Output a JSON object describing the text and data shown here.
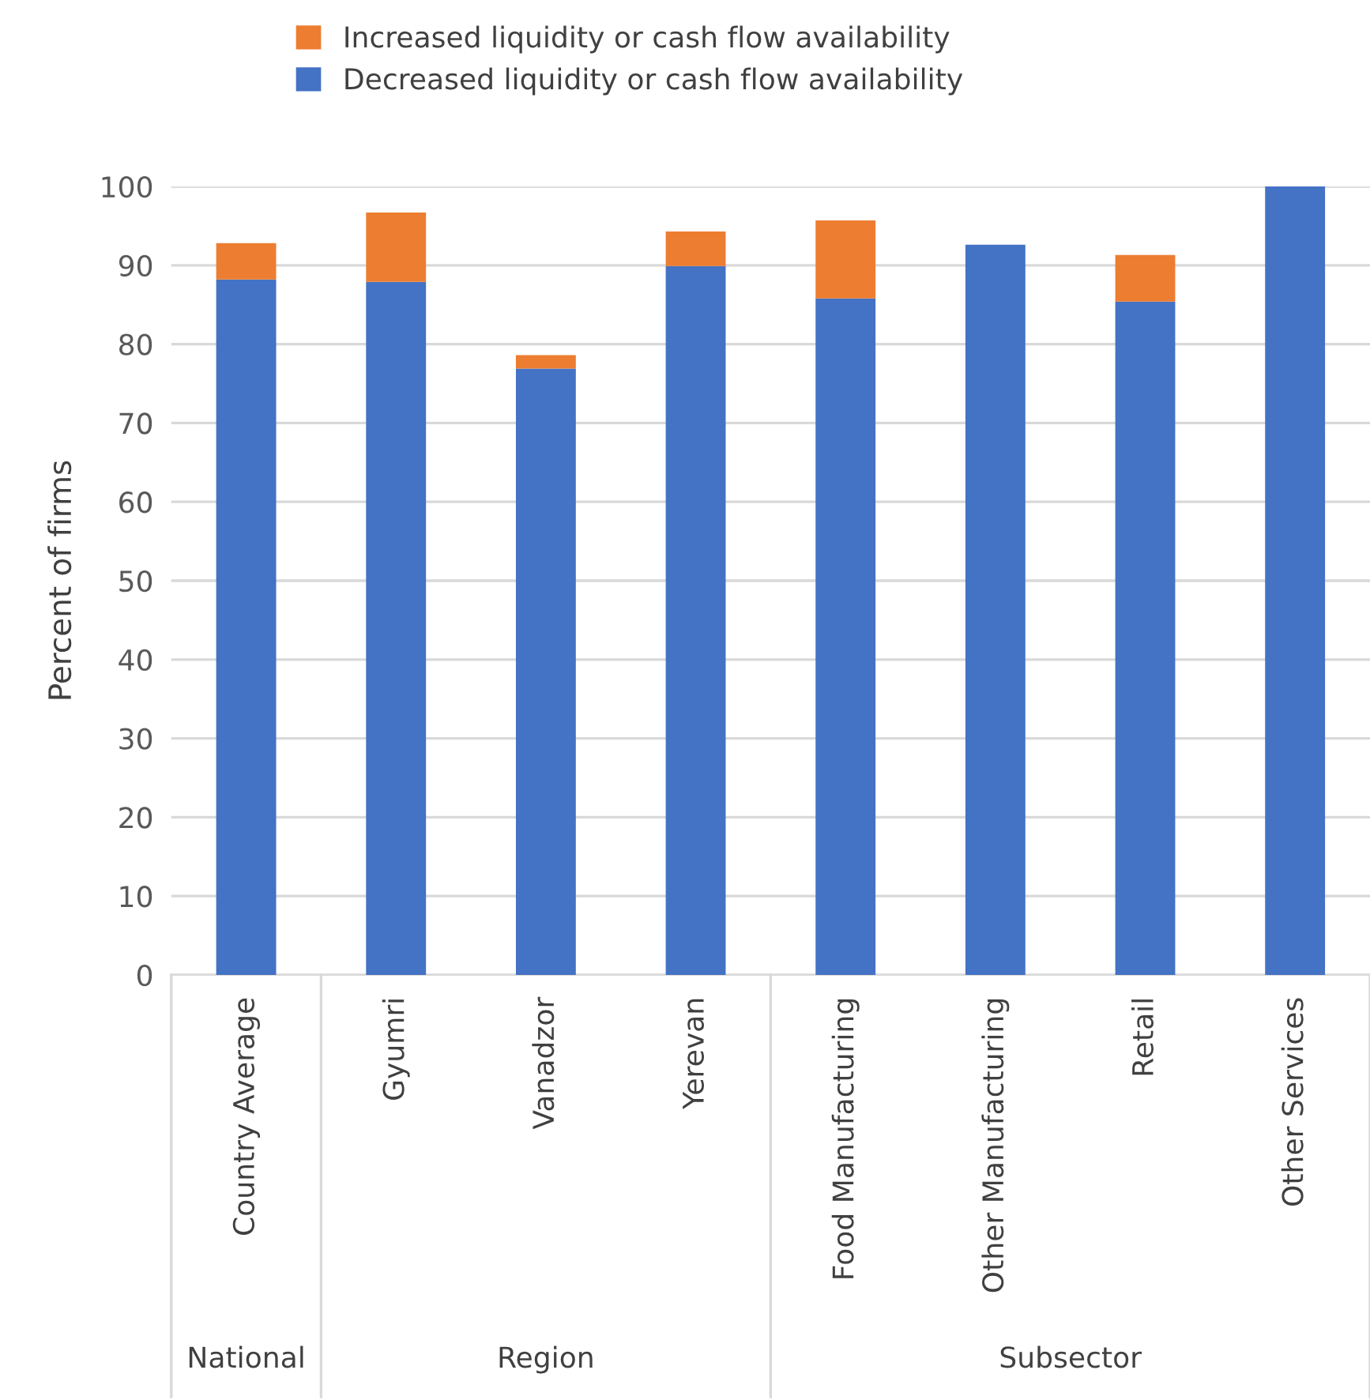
{
  "chart_data": {
    "type": "bar",
    "stacked": true,
    "ylabel": "Percent of firms",
    "categories": [
      "Country Average",
      "Gyumri",
      "Vanadzor",
      "Yerevan",
      "Food Manufacturing",
      "Other Manufacturing",
      "Retail",
      "Other Services"
    ],
    "series": [
      {
        "name": "Decreased liquidity or cash flow availability",
        "color": "#4472c4",
        "values": [
          88.2,
          87.9,
          76.9,
          89.9,
          85.8,
          92.6,
          85.4,
          100
        ]
      },
      {
        "name": "Increased liquidity or cash flow availability",
        "color": "#ed7d31",
        "values": [
          4.6,
          8.8,
          1.7,
          4.4,
          9.9,
          null,
          5.9,
          null
        ]
      }
    ],
    "ylim": [
      0,
      100
    ],
    "yticks": [
      0,
      10,
      20,
      30,
      40,
      50,
      60,
      70,
      80,
      90,
      100
    ],
    "grid": "y",
    "legend": "top",
    "annotations": [
      "National",
      "Region",
      "Subsector"
    ]
  }
}
